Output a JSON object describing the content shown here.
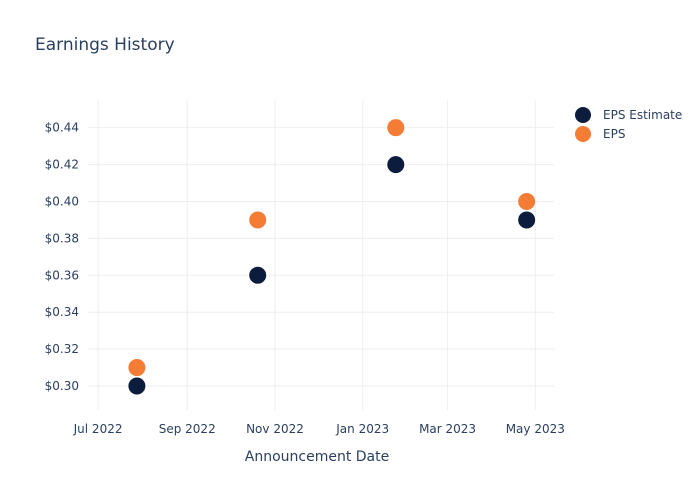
{
  "colors": {
    "estimate": "#0c1c3c",
    "eps": "#f47c35",
    "grid": "#eeeeee",
    "text": "#2a3f5f"
  },
  "chart_data": {
    "type": "scatter",
    "title": "Earnings History",
    "xlabel": "Announcement Date",
    "ylabel": "",
    "x_tick_labels": [
      "Jul 2022",
      "Sep 2022",
      "Nov 2022",
      "Jan 2023",
      "Mar 2023",
      "May 2023"
    ],
    "x_tick_dates": [
      "2022-07-01",
      "2022-09-01",
      "2022-11-01",
      "2023-01-01",
      "2023-03-01",
      "2023-05-01"
    ],
    "xlim": [
      "2022-06-24",
      "2023-05-14"
    ],
    "y_tick_labels": [
      "$0.30",
      "$0.32",
      "$0.34",
      "$0.36",
      "$0.38",
      "$0.40",
      "$0.42",
      "$0.44"
    ],
    "y_ticks": [
      0.3,
      0.32,
      0.34,
      0.36,
      0.38,
      0.4,
      0.42,
      0.44
    ],
    "ylim": [
      0.287,
      0.455
    ],
    "grid": true,
    "legend_position": "top-right",
    "series": [
      {
        "name": "EPS Estimate",
        "color_key": "estimate",
        "points": [
          {
            "x": "2022-07-28",
            "y": 0.3
          },
          {
            "x": "2022-10-20",
            "y": 0.36
          },
          {
            "x": "2023-01-24",
            "y": 0.42
          },
          {
            "x": "2023-04-25",
            "y": 0.39
          }
        ]
      },
      {
        "name": "EPS",
        "color_key": "eps",
        "points": [
          {
            "x": "2022-07-28",
            "y": 0.31
          },
          {
            "x": "2022-10-20",
            "y": 0.39
          },
          {
            "x": "2023-01-24",
            "y": 0.44
          },
          {
            "x": "2023-04-25",
            "y": 0.4
          }
        ]
      }
    ]
  }
}
